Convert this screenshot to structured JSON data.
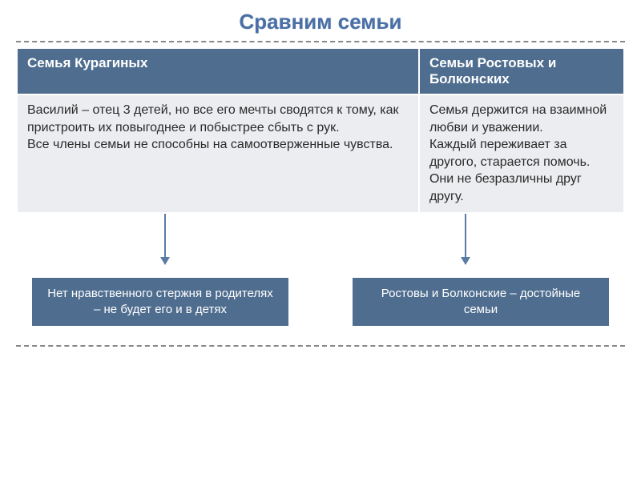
{
  "title": "Сравним семьи",
  "table": {
    "headers": [
      "Семья Курагиных",
      "Семьи Ростовых  и Болконских"
    ],
    "row": [
      "Василий – отец 3 детей, но все его мечты сводятся к тому, как пристроить их повыгоднее и побыстрее сбыть с рук.\nВсе члены семьи не способны на самоотверженные чувства.",
      "Семья держится на взаимной любви и уважении.\nКаждый переживает за другого, старается помочь.\nОни не безразличны друг другу."
    ]
  },
  "boxes": {
    "left": "Нет нравственного стержня в родителях – не будет его и в детях",
    "right": "Ростовы  и Болконские – достойные семьи"
  },
  "colors": {
    "header_bg": "#4f6d8f",
    "cell_bg": "#ecedf0",
    "title_color": "#4a6fa5",
    "arrow_color": "#5a7ba3"
  }
}
